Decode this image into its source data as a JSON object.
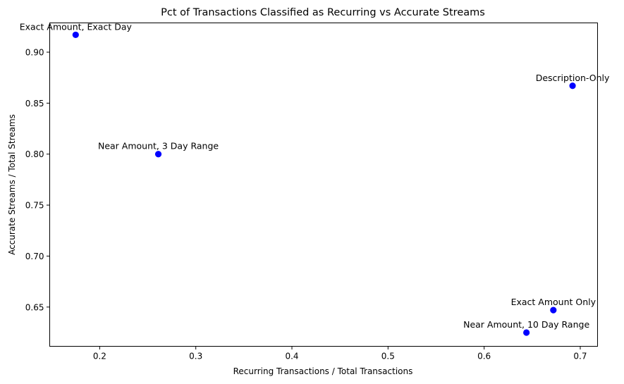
{
  "chart_data": {
    "type": "scatter",
    "title": "Pct of Transactions Classified as Recurring vs Accurate Streams",
    "xlabel": "Recurring Transactions / Total Transactions",
    "ylabel": "Accurate Streams / Total Streams",
    "xlim": [
      0.148,
      0.718
    ],
    "ylim": [
      0.6115,
      0.9287
    ],
    "xticks": [
      0.2,
      0.3,
      0.4,
      0.5,
      0.6,
      0.7
    ],
    "xtick_labels": [
      "0.2",
      "0.3",
      "0.4",
      "0.5",
      "0.6",
      "0.7"
    ],
    "yticks": [
      0.65,
      0.7,
      0.75,
      0.8,
      0.85,
      0.9
    ],
    "ytick_labels": [
      "0.65",
      "0.70",
      "0.75",
      "0.80",
      "0.85",
      "0.90"
    ],
    "grid": false,
    "marker_color": "#0000ff",
    "points": [
      {
        "label": "Exact Amount, Exact Day",
        "x": 0.175,
        "y": 0.917
      },
      {
        "label": "Near Amount, 3 Day Range",
        "x": 0.261,
        "y": 0.8
      },
      {
        "label": "Description-Only",
        "x": 0.692,
        "y": 0.867
      },
      {
        "label": "Exact Amount Only",
        "x": 0.672,
        "y": 0.647
      },
      {
        "label": "Near Amount, 10 Day Range",
        "x": 0.644,
        "y": 0.625
      }
    ]
  }
}
